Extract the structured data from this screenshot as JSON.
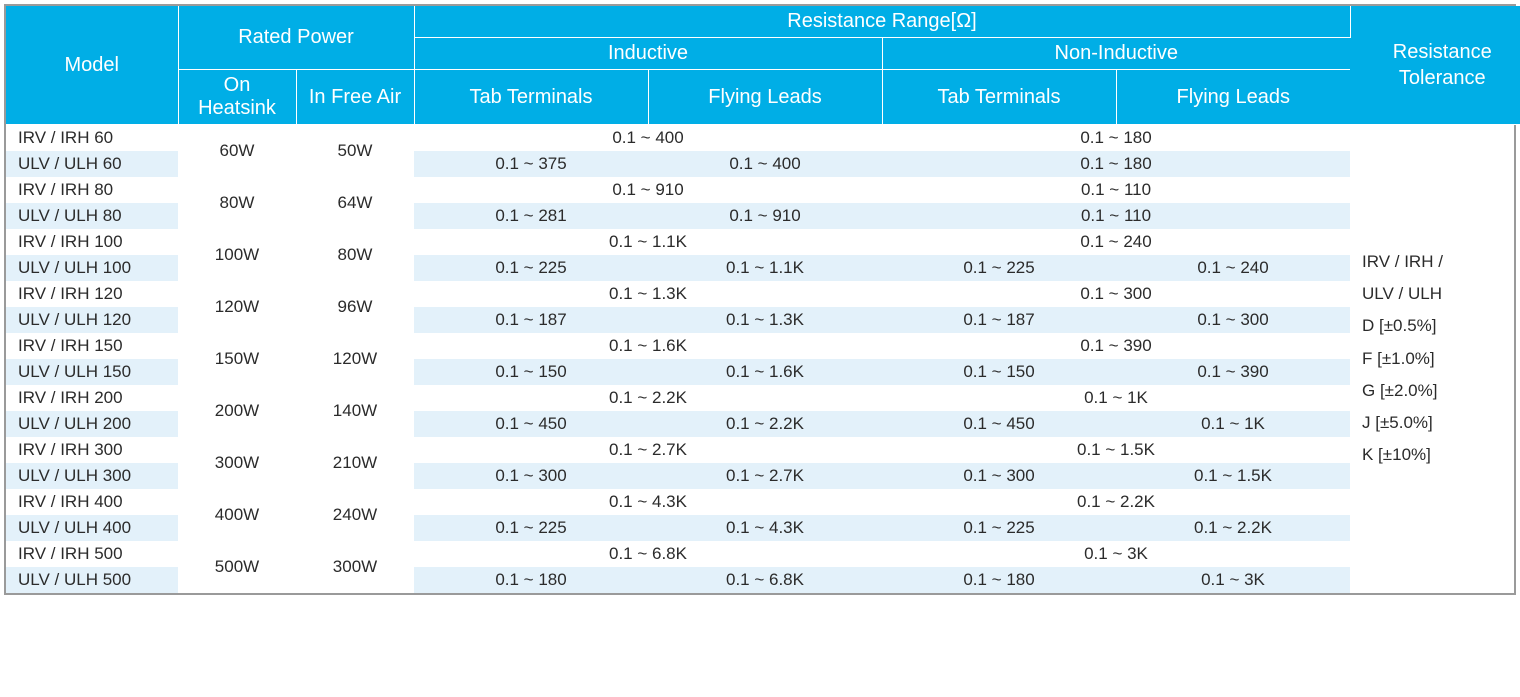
{
  "header": {
    "model": "Model",
    "rated_power": "Rated Power",
    "on_heatsink": "On Heatsink",
    "in_free_air": "In Free Air",
    "resistance_range": "Resistance Range[Ω]",
    "inductive": "Inductive",
    "non_inductive": "Non-Inductive",
    "tab_terminals": "Tab Terminals",
    "flying_leads": "Flying Leads",
    "resistance_tolerance": "Resistance Tolerance"
  },
  "groups": [
    {
      "heatsink": "60W",
      "free_air": "50W",
      "r1": {
        "model": "IRV / IRH 60",
        "ind_span": "0.1 ~ 400",
        "non_span": "0.1 ~ 180"
      },
      "r2": {
        "model": "ULV / ULH 60",
        "ind_tab": "0.1 ~ 375",
        "ind_fly": "0.1 ~ 400",
        "non_span": "0.1 ~ 180"
      }
    },
    {
      "heatsink": "80W",
      "free_air": "64W",
      "r1": {
        "model": "IRV / IRH 80",
        "ind_span": "0.1 ~ 910",
        "non_span": "0.1 ~ 110"
      },
      "r2": {
        "model": "ULV / ULH 80",
        "ind_tab": "0.1 ~ 281",
        "ind_fly": "0.1 ~ 910",
        "non_span": "0.1 ~ 110"
      }
    },
    {
      "heatsink": "100W",
      "free_air": "80W",
      "r1": {
        "model": "IRV / IRH 100",
        "ind_span": "0.1 ~ 1.1K",
        "non_span": "0.1 ~ 240"
      },
      "r2": {
        "model": "ULV / ULH 100",
        "ind_tab": "0.1 ~ 225",
        "ind_fly": "0.1 ~ 1.1K",
        "non_tab": "0.1 ~ 225",
        "non_fly": "0.1 ~ 240"
      }
    },
    {
      "heatsink": "120W",
      "free_air": "96W",
      "r1": {
        "model": "IRV / IRH 120",
        "ind_span": "0.1 ~ 1.3K",
        "non_span": "0.1 ~ 300"
      },
      "r2": {
        "model": "ULV / ULH 120",
        "ind_tab": "0.1 ~ 187",
        "ind_fly": "0.1 ~ 1.3K",
        "non_tab": "0.1 ~ 187",
        "non_fly": "0.1 ~ 300"
      }
    },
    {
      "heatsink": "150W",
      "free_air": "120W",
      "r1": {
        "model": "IRV / IRH 150",
        "ind_span": "0.1 ~ 1.6K",
        "non_span": "0.1 ~ 390"
      },
      "r2": {
        "model": "ULV / ULH 150",
        "ind_tab": "0.1 ~ 150",
        "ind_fly": "0.1 ~ 1.6K",
        "non_tab": "0.1 ~ 150",
        "non_fly": "0.1 ~ 390"
      }
    },
    {
      "heatsink": "200W",
      "free_air": "140W",
      "r1": {
        "model": "IRV / IRH 200",
        "ind_span": "0.1 ~ 2.2K",
        "non_span": "0.1 ~ 1K"
      },
      "r2": {
        "model": "ULV / ULH 200",
        "ind_tab": "0.1 ~ 450",
        "ind_fly": "0.1 ~ 2.2K",
        "non_tab": "0.1 ~ 450",
        "non_fly": "0.1 ~ 1K"
      }
    },
    {
      "heatsink": "300W",
      "free_air": "210W",
      "r1": {
        "model": "IRV / IRH 300",
        "ind_span": "0.1 ~ 2.7K",
        "non_span": "0.1 ~ 1.5K"
      },
      "r2": {
        "model": "ULV / ULH 300",
        "ind_tab": "0.1 ~ 300",
        "ind_fly": "0.1 ~ 2.7K",
        "non_tab": "0.1 ~ 300",
        "non_fly": "0.1 ~ 1.5K"
      }
    },
    {
      "heatsink": "400W",
      "free_air": "240W",
      "r1": {
        "model": "IRV / IRH 400",
        "ind_span": "0.1 ~ 4.3K",
        "non_span": "0.1 ~ 2.2K"
      },
      "r2": {
        "model": "ULV / ULH 400",
        "ind_tab": "0.1 ~ 225",
        "ind_fly": "0.1 ~ 4.3K",
        "non_tab": "0.1 ~ 225",
        "non_fly": "0.1 ~ 2.2K"
      }
    },
    {
      "heatsink": "500W",
      "free_air": "300W",
      "r1": {
        "model": "IRV / IRH 500",
        "ind_span": "0.1 ~ 6.8K",
        "non_span": "0.1 ~ 3K"
      },
      "r2": {
        "model": "ULV / ULH 500",
        "ind_tab": "0.1 ~ 180",
        "ind_fly": "0.1 ~ 6.8K",
        "non_tab": "0.1 ~ 180",
        "non_fly": "0.1 ~ 3K"
      }
    }
  ],
  "tolerance_lines": [
    "IRV / IRH /",
    "ULV / ULH",
    "D [±0.5%]",
    "F [±1.0%]",
    "G [±2.0%]",
    "J [±5.0%]",
    "K [±10%]"
  ],
  "style": {
    "header_bg": "#00aee6",
    "header_fg": "#ffffff",
    "alt_row_bg": "#e3f1fa",
    "body_fg": "#2b2b2b",
    "border": "#9a9a9a",
    "font_family": "Segoe UI, Tahoma, sans-serif",
    "header_font_size_pt": 15,
    "body_font_size_pt": 13
  }
}
